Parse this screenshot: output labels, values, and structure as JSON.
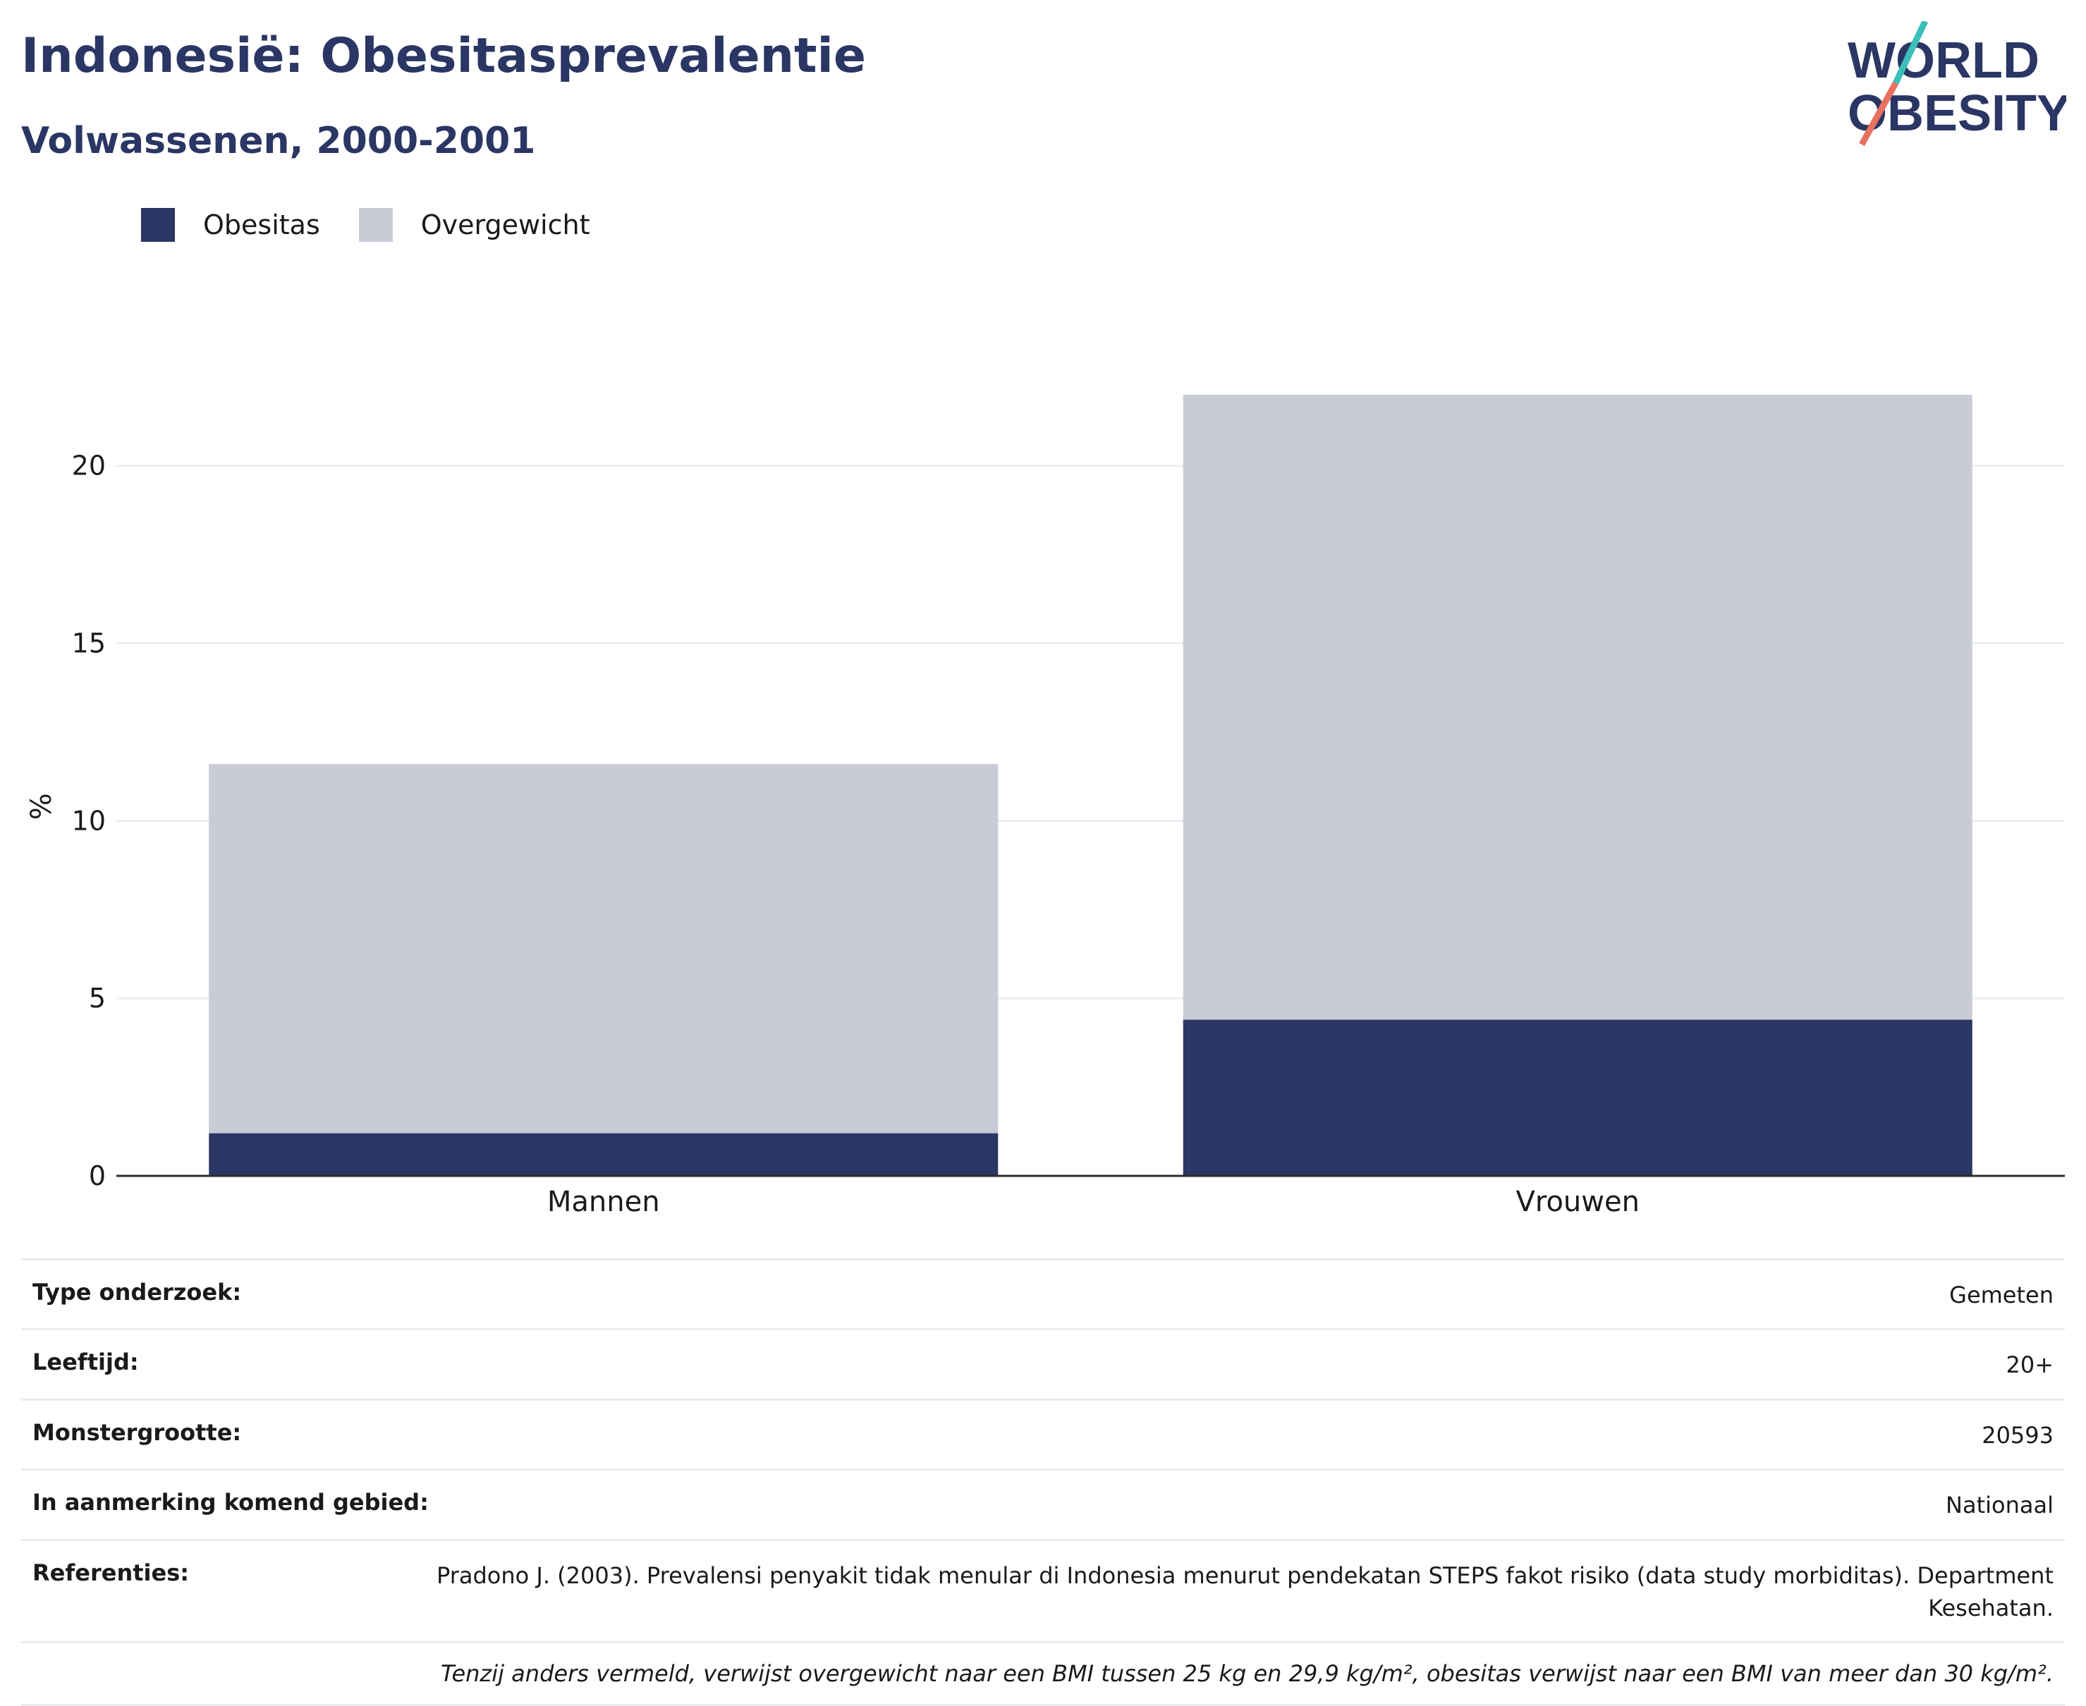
{
  "header": {
    "title": "Indonesië: Obesitasprevalentie",
    "subtitle": "Volwassenen, 2000-2001"
  },
  "logo": {
    "line1": "WORLD",
    "line2": "OBESITY"
  },
  "colors": {
    "obesity": "#2a3664",
    "overweight": "#c9cbd6",
    "title": "#2a3664",
    "logo_teal": "#3bbfb8",
    "logo_coral": "#e8705f"
  },
  "chart_data": {
    "type": "bar",
    "stacked": true,
    "categories": [
      "Mannen",
      "Vrouwen"
    ],
    "series": [
      {
        "name": "Obesitas",
        "values": [
          1.2,
          4.4
        ]
      },
      {
        "name": "Overgewicht",
        "values": [
          10.4,
          17.6
        ]
      }
    ],
    "ylabel": "%",
    "ylim": [
      0,
      22
    ],
    "yticks": [
      0,
      5,
      10,
      15,
      20
    ],
    "legend": "top-left",
    "grid": true
  },
  "info": {
    "rows": [
      {
        "label": "Type onderzoek:",
        "value": "Gemeten"
      },
      {
        "label": "Leeftijd:",
        "value": "20+"
      },
      {
        "label": "Monstergrootte:",
        "value": "20593"
      },
      {
        "label": "In aanmerking komend gebied:",
        "value": "Nationaal"
      },
      {
        "label": "Referenties:",
        "value": "Pradono J. (2003). Prevalensi penyakit tidak menular di Indonesia menurut pendekatan STEPS fakot risiko (data study morbiditas). Department Kesehatan."
      }
    ],
    "note": "Tenzij anders vermeld, verwijst overgewicht naar een BMI tussen 25 kg en 29,9 kg/m², obesitas verwijst naar een BMI van meer dan 30 kg/m²."
  }
}
